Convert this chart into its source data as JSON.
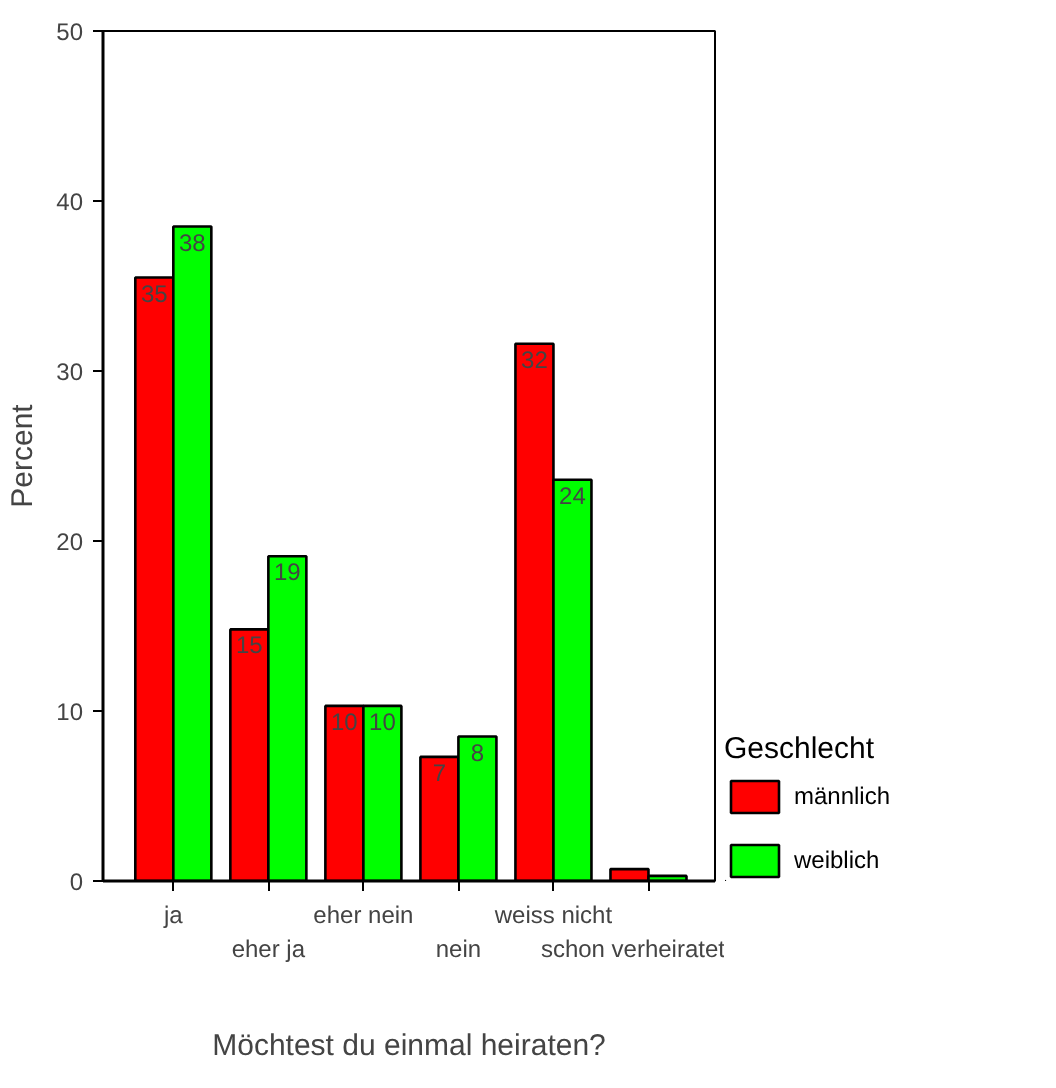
{
  "chart_data": {
    "type": "bar",
    "xlabel": "Möchtest du einmal heiraten?",
    "ylabel": "Percent",
    "legend_title": "Geschlecht",
    "categories": [
      "ja",
      "eher ja",
      "eher nein",
      "nein",
      "weiss nicht",
      "schon verheiratet"
    ],
    "series": [
      {
        "name": "männlich",
        "color": "#ff0000",
        "values": [
          35.5,
          14.8,
          10.3,
          7.3,
          31.6,
          0.7
        ],
        "value_labels": [
          "35",
          "15",
          "10",
          "7",
          "32",
          null
        ]
      },
      {
        "name": "weiblich",
        "color": "#00ff00",
        "values": [
          38.5,
          19.1,
          10.3,
          8.5,
          23.6,
          0.3
        ],
        "value_labels": [
          "38",
          "19",
          "10",
          "8",
          "24",
          null
        ]
      }
    ],
    "ylim": [
      0,
      50
    ],
    "yticks": [
      0,
      10,
      20,
      30,
      40,
      50
    ],
    "grid": false,
    "legend": "right"
  }
}
